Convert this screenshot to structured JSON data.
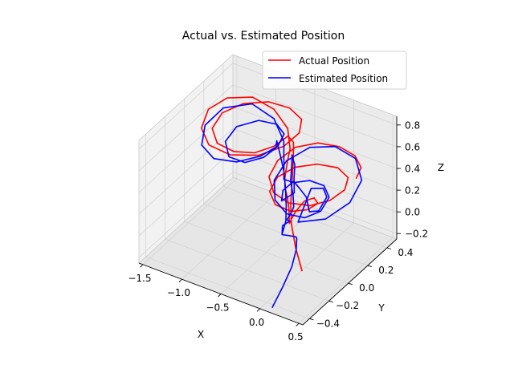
{
  "chart_data": {
    "type": "line3d",
    "title": "Actual vs. Estimated Position",
    "xlabel": "X",
    "ylabel": "Y",
    "zlabel": "Z",
    "xlim": [
      -1.55,
      0.55
    ],
    "ylim": [
      -0.47,
      0.5
    ],
    "zlim": [
      -0.25,
      0.88
    ],
    "xticks": [
      -1.5,
      -1.0,
      -0.5,
      0.0,
      0.5
    ],
    "xtick_labels": [
      "−1.5",
      "−1.0",
      "−0.5",
      "0.0",
      "0.5"
    ],
    "yticks": [
      -0.4,
      -0.2,
      0.0,
      0.2,
      0.4
    ],
    "ytick_labels": [
      "−0.4",
      "−0.2",
      "0.0",
      "0.2",
      "0.4"
    ],
    "zticks": [
      -0.2,
      0.0,
      0.2,
      0.4,
      0.6,
      0.8
    ],
    "ztick_labels": [
      "−0.2",
      "0.0",
      "0.2",
      "0.4",
      "0.6",
      "0.8"
    ],
    "grid": true,
    "legend_position": "top-right",
    "series": [
      {
        "name": "Actual Position",
        "color": "#ff0000",
        "points": [
          [
            0.28,
            0.3,
            0.4
          ],
          [
            0.23,
            0.39,
            0.41
          ],
          [
            0.09,
            0.44,
            0.44
          ],
          [
            -0.11,
            0.44,
            0.47
          ],
          [
            -0.31,
            0.38,
            0.5
          ],
          [
            -0.45,
            0.26,
            0.52
          ],
          [
            -0.49,
            0.11,
            0.51
          ],
          [
            -0.43,
            -0.03,
            0.49
          ],
          [
            -0.27,
            -0.11,
            0.45
          ],
          [
            -0.07,
            -0.12,
            0.42
          ],
          [
            0.13,
            -0.06,
            0.4
          ],
          [
            0.25,
            0.05,
            0.39
          ],
          [
            0.28,
            0.18,
            0.39
          ],
          [
            0.2,
            0.28,
            0.4
          ],
          [
            0.03,
            0.31,
            0.42
          ],
          [
            -0.17,
            0.26,
            0.44
          ],
          [
            -0.32,
            0.15,
            0.46
          ],
          [
            -0.37,
            0.01,
            0.47
          ],
          [
            -0.31,
            -0.12,
            0.46
          ],
          [
            -0.15,
            -0.19,
            0.44
          ],
          [
            0.04,
            -0.18,
            0.42
          ],
          [
            0.15,
            -0.1,
            0.4
          ],
          [
            0.16,
            0.0,
            0.38
          ],
          [
            0.05,
            0.05,
            0.36
          ],
          [
            -0.05,
            0.03,
            0.32
          ],
          [
            -0.1,
            -0.02,
            0.25
          ],
          [
            -0.14,
            -0.03,
            0.18
          ],
          [
            -0.18,
            -0.02,
            0.12
          ],
          [
            -0.22,
            0.01,
            0.12
          ],
          [
            -0.26,
            0.04,
            0.18
          ],
          [
            -0.28,
            0.04,
            0.28
          ],
          [
            -0.3,
            0.03,
            0.38
          ],
          [
            -0.3,
            0.03,
            0.46
          ],
          [
            -0.31,
            0.05,
            0.52
          ],
          [
            -0.35,
            0.1,
            0.56
          ],
          [
            -0.42,
            0.18,
            0.58
          ],
          [
            -0.6,
            0.3,
            0.62
          ],
          [
            -0.85,
            0.36,
            0.68
          ],
          [
            -1.1,
            0.34,
            0.74
          ],
          [
            -1.3,
            0.24,
            0.76
          ],
          [
            -1.38,
            0.11,
            0.74
          ],
          [
            -1.32,
            -0.01,
            0.68
          ],
          [
            -1.15,
            -0.07,
            0.62
          ],
          [
            -0.9,
            -0.05,
            0.58
          ],
          [
            -0.66,
            0.05,
            0.56
          ],
          [
            -0.5,
            0.18,
            0.58
          ],
          [
            -0.45,
            0.3,
            0.62
          ],
          [
            -0.52,
            0.38,
            0.66
          ],
          [
            -0.7,
            0.4,
            0.7
          ],
          [
            -0.92,
            0.36,
            0.73
          ],
          [
            -1.12,
            0.26,
            0.74
          ],
          [
            -1.24,
            0.14,
            0.72
          ],
          [
            -1.22,
            0.02,
            0.68
          ],
          [
            -1.08,
            -0.04,
            0.63
          ],
          [
            -0.88,
            -0.03,
            0.6
          ],
          [
            -0.7,
            0.04,
            0.58
          ],
          [
            -0.58,
            0.14,
            0.59
          ],
          [
            -0.52,
            0.24,
            0.62
          ],
          [
            -0.45,
            0.24,
            0.58
          ],
          [
            -0.38,
            0.18,
            0.48
          ],
          [
            -0.32,
            0.12,
            0.36
          ],
          [
            -0.25,
            0.05,
            0.22
          ],
          [
            -0.18,
            0.0,
            0.1
          ],
          [
            -0.05,
            -0.06,
            -0.04
          ],
          [
            0.08,
            -0.1,
            -0.18
          ]
        ]
      },
      {
        "name": "Estimated Position",
        "color": "#0000ff",
        "points": [
          [
            -0.3,
            -0.1,
            -0.62
          ],
          [
            -0.25,
            -0.04,
            -0.48
          ],
          [
            -0.2,
            0.02,
            -0.32
          ],
          [
            -0.18,
            0.05,
            -0.18
          ],
          [
            -0.16,
            0.04,
            -0.06
          ],
          [
            -0.1,
            -0.02,
            0.02
          ],
          [
            -0.2,
            -0.08,
            0.06
          ],
          [
            -0.22,
            -0.06,
            0.12
          ],
          [
            -0.18,
            -0.02,
            0.14
          ],
          [
            -0.26,
            0.02,
            0.1
          ],
          [
            -0.24,
            0.06,
            0.16
          ],
          [
            -0.2,
            0.04,
            0.22
          ],
          [
            -0.22,
            0.05,
            0.32
          ],
          [
            -0.24,
            0.04,
            0.44
          ],
          [
            -0.25,
            0.06,
            0.56
          ],
          [
            -0.27,
            0.08,
            0.64
          ],
          [
            -0.3,
            0.1,
            0.62
          ],
          [
            -0.26,
            0.1,
            0.54
          ],
          [
            -0.22,
            0.06,
            0.46
          ],
          [
            -0.18,
            0.03,
            0.36
          ],
          [
            -0.28,
            -0.02,
            0.3
          ],
          [
            -0.35,
            0.05,
            0.32
          ],
          [
            -0.3,
            0.12,
            0.36
          ],
          [
            -0.2,
            0.1,
            0.34
          ],
          [
            -0.05,
            0.05,
            0.34
          ],
          [
            0.1,
            -0.04,
            0.32
          ],
          [
            0.22,
            -0.04,
            0.36
          ],
          [
            0.2,
            0.06,
            0.4
          ],
          [
            0.08,
            0.12,
            0.4
          ],
          [
            -0.05,
            0.1,
            0.38
          ],
          [
            0.08,
            -0.14,
            0.3
          ],
          [
            0.32,
            -0.05,
            0.32
          ],
          [
            0.42,
            0.12,
            0.36
          ],
          [
            0.35,
            0.3,
            0.4
          ],
          [
            0.12,
            0.42,
            0.44
          ],
          [
            -0.14,
            0.42,
            0.48
          ],
          [
            -0.34,
            0.32,
            0.5
          ],
          [
            -0.44,
            0.16,
            0.48
          ],
          [
            -0.4,
            0.0,
            0.44
          ],
          [
            -0.24,
            -0.12,
            0.4
          ],
          [
            -0.04,
            -0.16,
            0.36
          ],
          [
            0.14,
            -0.12,
            0.34
          ],
          [
            0.22,
            -0.02,
            0.34
          ],
          [
            0.18,
            0.1,
            0.36
          ],
          [
            0.04,
            0.16,
            0.38
          ],
          [
            -0.12,
            0.14,
            0.4
          ],
          [
            -0.22,
            0.06,
            0.42
          ],
          [
            -0.3,
            0.02,
            0.46
          ],
          [
            -0.4,
            0.1,
            0.52
          ],
          [
            -0.55,
            0.22,
            0.58
          ],
          [
            -0.8,
            0.32,
            0.64
          ],
          [
            -1.08,
            0.32,
            0.7
          ],
          [
            -1.3,
            0.2,
            0.7
          ],
          [
            -1.36,
            0.06,
            0.64
          ],
          [
            -1.28,
            -0.04,
            0.56
          ],
          [
            -1.1,
            -0.06,
            0.5
          ],
          [
            -0.88,
            0.0,
            0.48
          ],
          [
            -0.7,
            0.1,
            0.5
          ],
          [
            -0.6,
            0.2,
            0.54
          ],
          [
            -0.62,
            0.28,
            0.58
          ],
          [
            -0.74,
            0.3,
            0.62
          ],
          [
            -0.92,
            0.26,
            0.64
          ],
          [
            -1.08,
            0.16,
            0.62
          ],
          [
            -1.1,
            0.06,
            0.56
          ],
          [
            -0.98,
            0.0,
            0.5
          ],
          [
            -0.8,
            0.02,
            0.48
          ],
          [
            -0.66,
            0.1,
            0.5
          ],
          [
            -0.6,
            0.18,
            0.54
          ],
          [
            -0.64,
            0.22,
            0.56
          ],
          [
            -0.55,
            0.18,
            0.5
          ],
          [
            -0.45,
            0.14,
            0.4
          ],
          [
            -0.38,
            0.1,
            0.3
          ],
          [
            -0.32,
            0.06,
            0.18
          ],
          [
            -0.3,
            0.04,
            0.06
          ],
          [
            -0.32,
            0.02,
            -0.04
          ]
        ]
      }
    ]
  }
}
